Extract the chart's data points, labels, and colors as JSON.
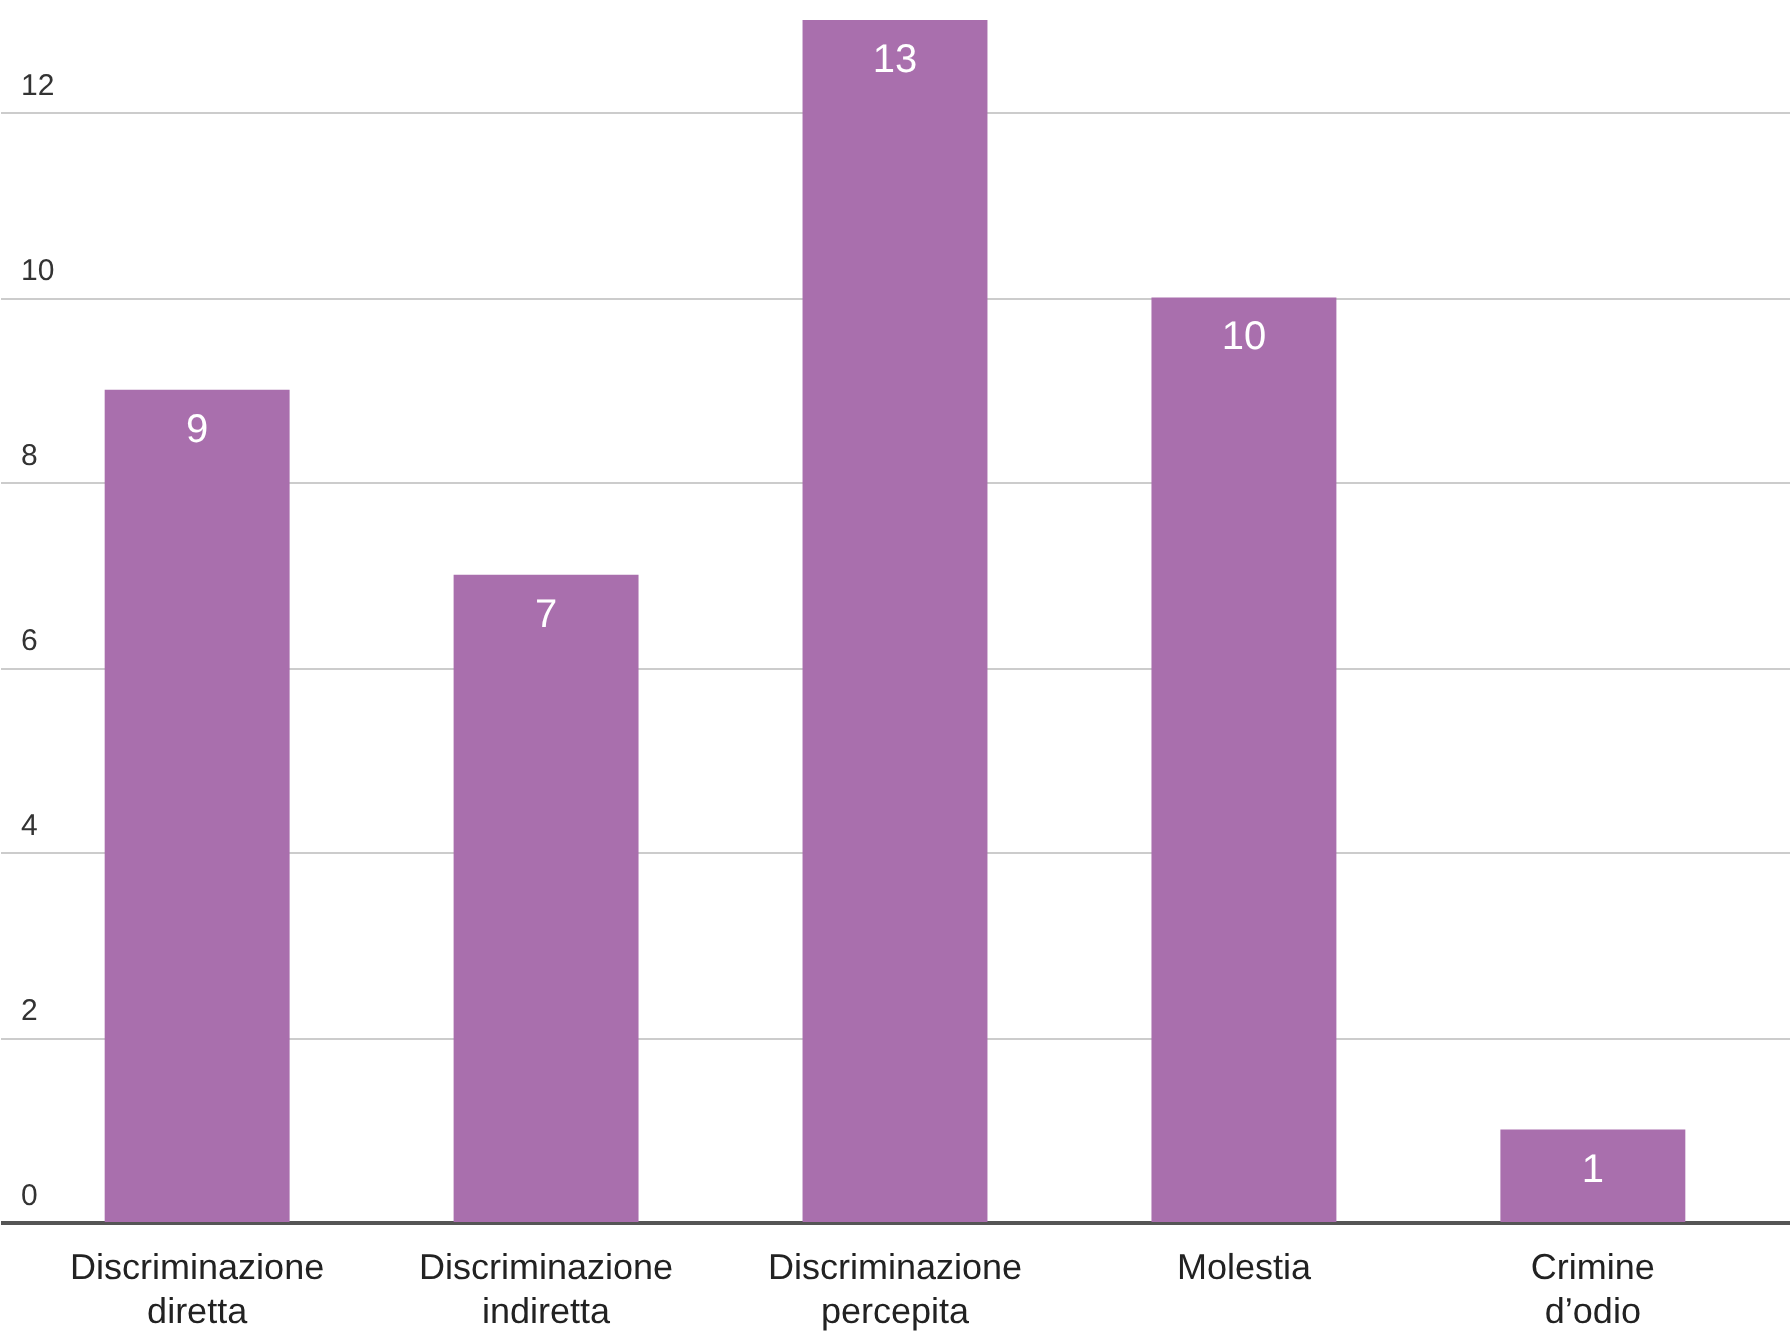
{
  "chart_data": {
    "type": "bar",
    "categories": [
      "Discriminazione diretta",
      "Discriminazione indiretta",
      "Discriminazione percepita",
      "Molestia",
      "Crimine d’odio"
    ],
    "values": [
      9,
      7,
      13,
      10,
      1
    ],
    "color": "#a96fad",
    "ylim": [
      0,
      13
    ],
    "yticks": [
      0,
      2,
      4,
      6,
      8,
      10,
      12
    ],
    "grid": "y",
    "data_labels": true
  }
}
